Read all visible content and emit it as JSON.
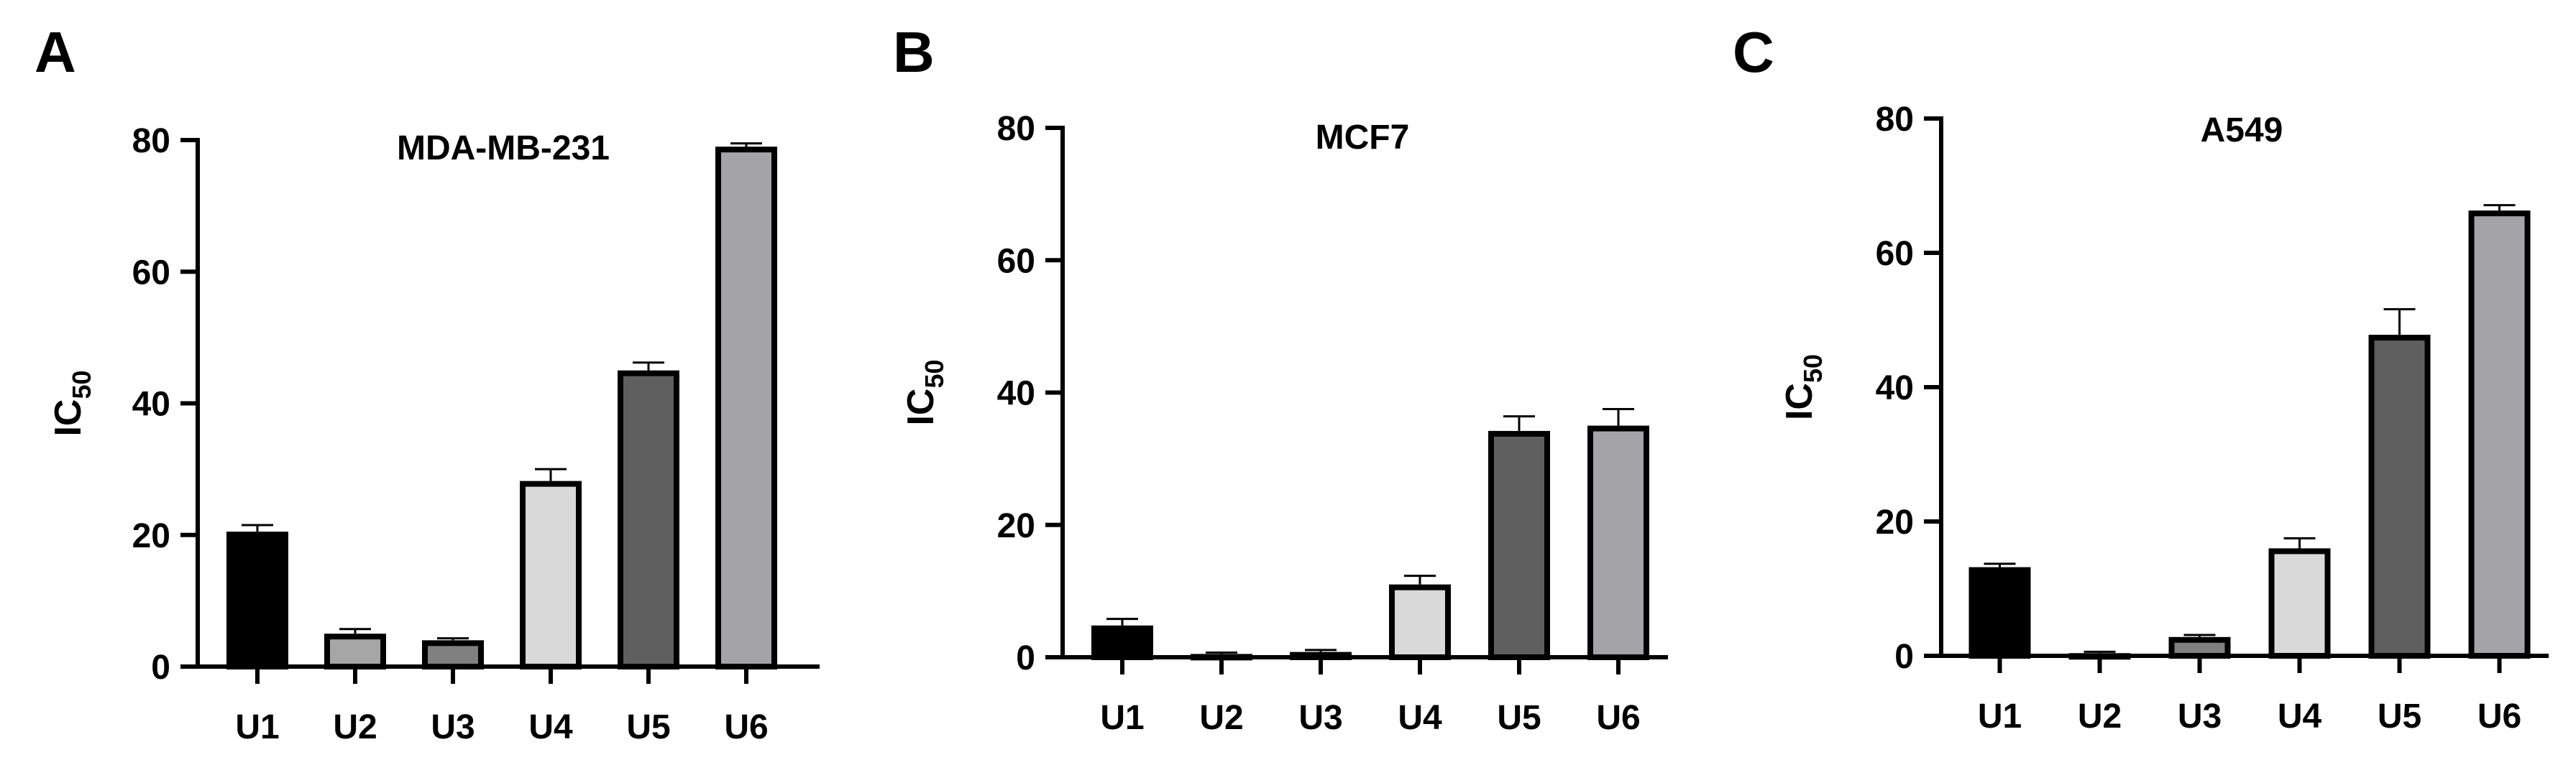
{
  "chart_data": [
    {
      "type": "bar",
      "panel_letter": "A",
      "title": "MDA-MB-231",
      "ylabel": "IC",
      "ylabel_sub": "50",
      "categories": [
        "U1",
        "U2",
        "U3",
        "U4",
        "U5",
        "U6"
      ],
      "values": [
        20.5,
        5.0,
        4.0,
        28.2,
        45.0,
        79.0
      ],
      "errors": [
        1.0,
        0.7,
        0.3,
        1.8,
        1.2,
        0.5
      ],
      "ylim": [
        0,
        80
      ],
      "yticks": [
        0,
        20,
        40,
        60,
        80
      ],
      "bar_colors": [
        "#000000",
        "#a6a6a6",
        "#808080",
        "#d9d9d9",
        "#5f5f5f",
        "#a3a3a8"
      ],
      "grid": false
    },
    {
      "type": "bar",
      "panel_letter": "B",
      "title": "MCF7",
      "ylabel": "IC",
      "ylabel_sub": "50",
      "categories": [
        "U1",
        "U2",
        "U3",
        "U4",
        "U5",
        "U6"
      ],
      "values": [
        4.8,
        0.5,
        0.8,
        11.0,
        34.2,
        35.0
      ],
      "errors": [
        1.0,
        0.2,
        0.3,
        1.3,
        2.2,
        2.5
      ],
      "ylim": [
        0,
        80
      ],
      "yticks": [
        0,
        20,
        40,
        60,
        80
      ],
      "bar_colors": [
        "#000000",
        "#a6a6a6",
        "#808080",
        "#d9d9d9",
        "#5f5f5f",
        "#a3a3a8"
      ],
      "grid": false
    },
    {
      "type": "bar",
      "panel_letter": "C",
      "title": "A549",
      "ylabel": "IC",
      "ylabel_sub": "50",
      "categories": [
        "U1",
        "U2",
        "U3",
        "U4",
        "U5",
        "U6"
      ],
      "values": [
        13.2,
        0.4,
        2.8,
        16.0,
        47.8,
        66.3
      ],
      "errors": [
        0.5,
        0.2,
        0.3,
        1.5,
        3.8,
        0.8
      ],
      "ylim": [
        0,
        80
      ],
      "yticks": [
        0,
        20,
        40,
        60,
        80
      ],
      "bar_colors": [
        "#000000",
        "#a6a6a6",
        "#808080",
        "#d9d9d9",
        "#5f5f5f",
        "#a3a3a8"
      ],
      "grid": false
    }
  ]
}
